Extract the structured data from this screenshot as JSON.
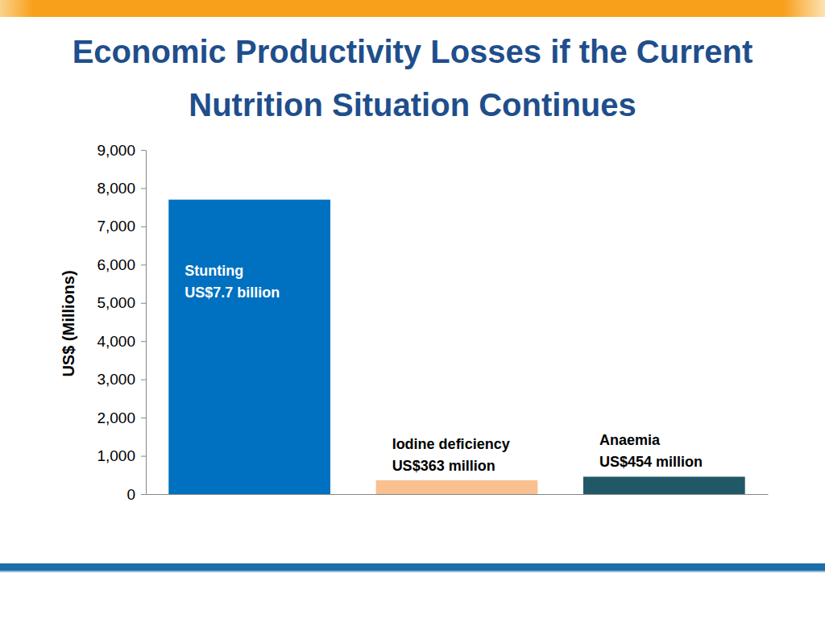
{
  "chart_data": {
    "type": "bar",
    "title": "Economic Productivity Losses if the Current Nutrition Situation Continues",
    "ylabel": "US$ (Millions)",
    "categories": [
      "Stunting",
      "Iodine deficiency",
      "Anaemia"
    ],
    "values": [
      7700,
      363,
      454
    ],
    "value_labels": [
      "US$7.7 billion",
      "US$363 million",
      "US$454 million"
    ],
    "colors": [
      "#0070c0",
      "#fac090",
      "#215868"
    ],
    "ylim": [
      0,
      9000
    ],
    "yticks": [
      0,
      {
        "value": 1000,
        "label": "1,000"
      },
      {
        "value": 2000,
        "label": "2,000"
      },
      {
        "value": 3000,
        "label": "3,000"
      },
      {
        "value": 4000,
        "label": "4,000"
      },
      {
        "value": 5000,
        "label": "5,000"
      },
      {
        "value": 6000,
        "label": "6,000"
      },
      {
        "value": 7000,
        "label": "7,000"
      },
      {
        "value": 8000,
        "label": "8,000"
      },
      {
        "value": 9000,
        "label": "9,000"
      }
    ],
    "grid": false,
    "data_labels": true,
    "tick_labels": "y"
  }
}
